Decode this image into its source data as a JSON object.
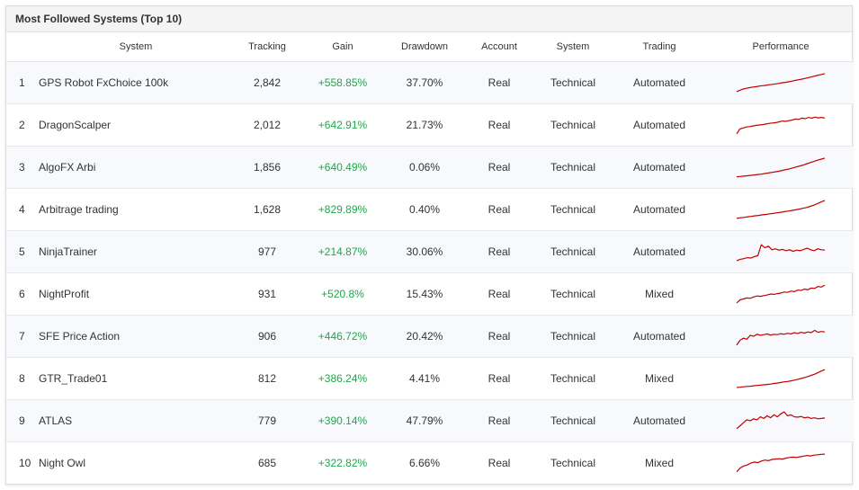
{
  "title": "Most Followed Systems (Top 10)",
  "columns": [
    "",
    "System",
    "Tracking",
    "Gain",
    "Drawdown",
    "Account",
    "System",
    "Trading",
    "Performance"
  ],
  "rows": [
    {
      "rank": "1",
      "name": "GPS Robot FxChoice 100k",
      "tracking": "2,842",
      "gain": "+558.85%",
      "drawdown": "37.70%",
      "account": "Real",
      "type": "Technical",
      "trading": "Automated",
      "spark": [
        0.05,
        0.12,
        0.18,
        0.22,
        0.25,
        0.28,
        0.3,
        0.33,
        0.35,
        0.37,
        0.4,
        0.42,
        0.44,
        0.47,
        0.5,
        0.52,
        0.55,
        0.58,
        0.62,
        0.65,
        0.68,
        0.72,
        0.76,
        0.8,
        0.84,
        0.88,
        0.92,
        0.96
      ]
    },
    {
      "rank": "2",
      "name": "DragonScalper",
      "tracking": "2,012",
      "gain": "+642.91%",
      "drawdown": "21.73%",
      "account": "Real",
      "type": "Technical",
      "trading": "Automated",
      "spark": [
        0.05,
        0.3,
        0.35,
        0.4,
        0.42,
        0.45,
        0.48,
        0.5,
        0.52,
        0.55,
        0.58,
        0.6,
        0.62,
        0.66,
        0.7,
        0.68,
        0.72,
        0.75,
        0.8,
        0.78,
        0.85,
        0.82,
        0.88,
        0.84,
        0.9,
        0.86,
        0.88,
        0.85
      ]
    },
    {
      "rank": "3",
      "name": "AlgoFX Arbi",
      "tracking": "1,856",
      "gain": "+640.49%",
      "drawdown": "0.06%",
      "account": "Real",
      "type": "Technical",
      "trading": "Automated",
      "spark": [
        0.02,
        0.03,
        0.05,
        0.07,
        0.09,
        0.11,
        0.13,
        0.15,
        0.18,
        0.21,
        0.24,
        0.27,
        0.3,
        0.34,
        0.38,
        0.42,
        0.47,
        0.52,
        0.57,
        0.62,
        0.68,
        0.74,
        0.8,
        0.86,
        0.91,
        0.96
      ]
    },
    {
      "rank": "4",
      "name": "Arbitrage trading",
      "tracking": "1,628",
      "gain": "+829.89%",
      "drawdown": "0.40%",
      "account": "Real",
      "type": "Technical",
      "trading": "Automated",
      "spark": [
        0.05,
        0.08,
        0.1,
        0.13,
        0.15,
        0.18,
        0.2,
        0.23,
        0.25,
        0.28,
        0.3,
        0.33,
        0.36,
        0.39,
        0.42,
        0.45,
        0.48,
        0.52,
        0.56,
        0.6,
        0.66,
        0.72,
        0.8,
        0.88,
        0.96
      ]
    },
    {
      "rank": "5",
      "name": "NinjaTrainer",
      "tracking": "977",
      "gain": "+214.87%",
      "drawdown": "30.06%",
      "account": "Real",
      "type": "Technical",
      "trading": "Automated",
      "spark": [
        0.05,
        0.12,
        0.15,
        0.2,
        0.18,
        0.25,
        0.3,
        0.85,
        0.7,
        0.78,
        0.6,
        0.65,
        0.58,
        0.62,
        0.55,
        0.6,
        0.52,
        0.58,
        0.55,
        0.62,
        0.68,
        0.6,
        0.55,
        0.65,
        0.6,
        0.58
      ]
    },
    {
      "rank": "6",
      "name": "NightProfit",
      "tracking": "931",
      "gain": "+520.8%",
      "drawdown": "15.43%",
      "account": "Real",
      "type": "Technical",
      "trading": "Mixed",
      "spark": [
        0.05,
        0.2,
        0.25,
        0.3,
        0.28,
        0.35,
        0.4,
        0.38,
        0.42,
        0.45,
        0.5,
        0.48,
        0.52,
        0.55,
        0.6,
        0.58,
        0.65,
        0.62,
        0.7,
        0.68,
        0.75,
        0.72,
        0.8,
        0.78,
        0.88,
        0.85,
        0.95
      ]
    },
    {
      "rank": "7",
      "name": "SFE Price Action",
      "tracking": "906",
      "gain": "+446.72%",
      "drawdown": "20.42%",
      "account": "Real",
      "type": "Technical",
      "trading": "Automated",
      "spark": [
        0.05,
        0.3,
        0.4,
        0.35,
        0.55,
        0.5,
        0.6,
        0.55,
        0.58,
        0.62,
        0.56,
        0.6,
        0.58,
        0.63,
        0.6,
        0.65,
        0.62,
        0.68,
        0.64,
        0.7,
        0.66,
        0.72,
        0.68,
        0.8,
        0.7,
        0.74,
        0.72
      ]
    },
    {
      "rank": "8",
      "name": "GTR_Trade01",
      "tracking": "812",
      "gain": "+386.24%",
      "drawdown": "4.41%",
      "account": "Real",
      "type": "Technical",
      "trading": "Mixed",
      "spark": [
        0.05,
        0.06,
        0.08,
        0.1,
        0.11,
        0.13,
        0.15,
        0.17,
        0.18,
        0.2,
        0.22,
        0.25,
        0.27,
        0.3,
        0.33,
        0.35,
        0.38,
        0.42,
        0.46,
        0.5,
        0.55,
        0.6,
        0.66,
        0.72,
        0.8,
        0.88,
        0.95
      ]
    },
    {
      "rank": "9",
      "name": "ATLAS",
      "tracking": "779",
      "gain": "+390.14%",
      "drawdown": "47.79%",
      "account": "Real",
      "type": "Technical",
      "trading": "Automated",
      "spark": [
        0.1,
        0.25,
        0.4,
        0.55,
        0.5,
        0.6,
        0.55,
        0.7,
        0.62,
        0.75,
        0.65,
        0.8,
        0.7,
        0.85,
        0.95,
        0.75,
        0.8,
        0.7,
        0.68,
        0.72,
        0.65,
        0.68,
        0.62,
        0.65,
        0.6,
        0.62,
        0.64
      ]
    },
    {
      "rank": "10",
      "name": "Night Owl",
      "tracking": "685",
      "gain": "+322.82%",
      "drawdown": "6.66%",
      "account": "Real",
      "type": "Technical",
      "trading": "Mixed",
      "spark": [
        0.05,
        0.25,
        0.35,
        0.4,
        0.5,
        0.55,
        0.52,
        0.6,
        0.65,
        0.62,
        0.68,
        0.7,
        0.72,
        0.7,
        0.75,
        0.78,
        0.8,
        0.78,
        0.82,
        0.85,
        0.88,
        0.86,
        0.9,
        0.92,
        0.94,
        0.95
      ]
    }
  ]
}
